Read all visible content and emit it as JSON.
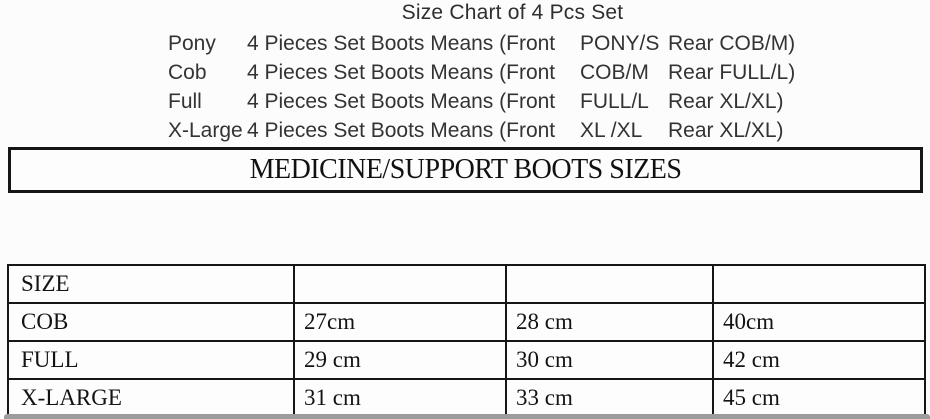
{
  "title": "Size Chart of 4 Pcs Set",
  "set_lines": [
    {
      "label": "Pony",
      "body": "4 Pieces Set Boots Means (Front",
      "front_size": "PONY/S",
      "rear": "Rear COB/M)"
    },
    {
      "label": "Cob",
      "body": "4 Pieces Set Boots Means (Front",
      "front_size": "COB/M",
      "rear": "Rear FULL/L)"
    },
    {
      "label": "Full",
      "body": "4 Pieces Set Boots Means (Front",
      "front_size": "FULL/L",
      "rear": "Rear XL/XL)"
    },
    {
      "label": "X-Large",
      "body": "4 Pieces Set Boots Means (Front",
      "front_size": "XL /XL",
      "rear": "Rear XL/XL)"
    }
  ],
  "banner": "MEDICINE/SUPPORT BOOTS SIZES",
  "size_table": {
    "header": [
      "SIZE",
      "",
      "",
      ""
    ],
    "rows": [
      [
        "COB",
        "27cm",
        "28 cm",
        "40cm"
      ],
      [
        "FULL",
        "29 cm",
        "30 cm",
        "42 cm"
      ],
      [
        "X-LARGE",
        "31 cm",
        "33 cm",
        "45 cm"
      ]
    ]
  },
  "chart_data": {
    "type": "table",
    "title": "MEDICINE/SUPPORT BOOTS SIZES",
    "columns": [
      "SIZE",
      "",
      "",
      ""
    ],
    "rows": [
      [
        "COB",
        "27cm",
        "28 cm",
        "40cm"
      ],
      [
        "FULL",
        "29 cm",
        "30 cm",
        "42 cm"
      ],
      [
        "X-LARGE",
        "31 cm",
        "33 cm",
        "45 cm"
      ]
    ]
  },
  "colors": {
    "background": "#fcfcfc",
    "border": "#161616",
    "top_text": "#333333",
    "table_text": "#131313",
    "bottom_bar": "#9c9c9c"
  }
}
